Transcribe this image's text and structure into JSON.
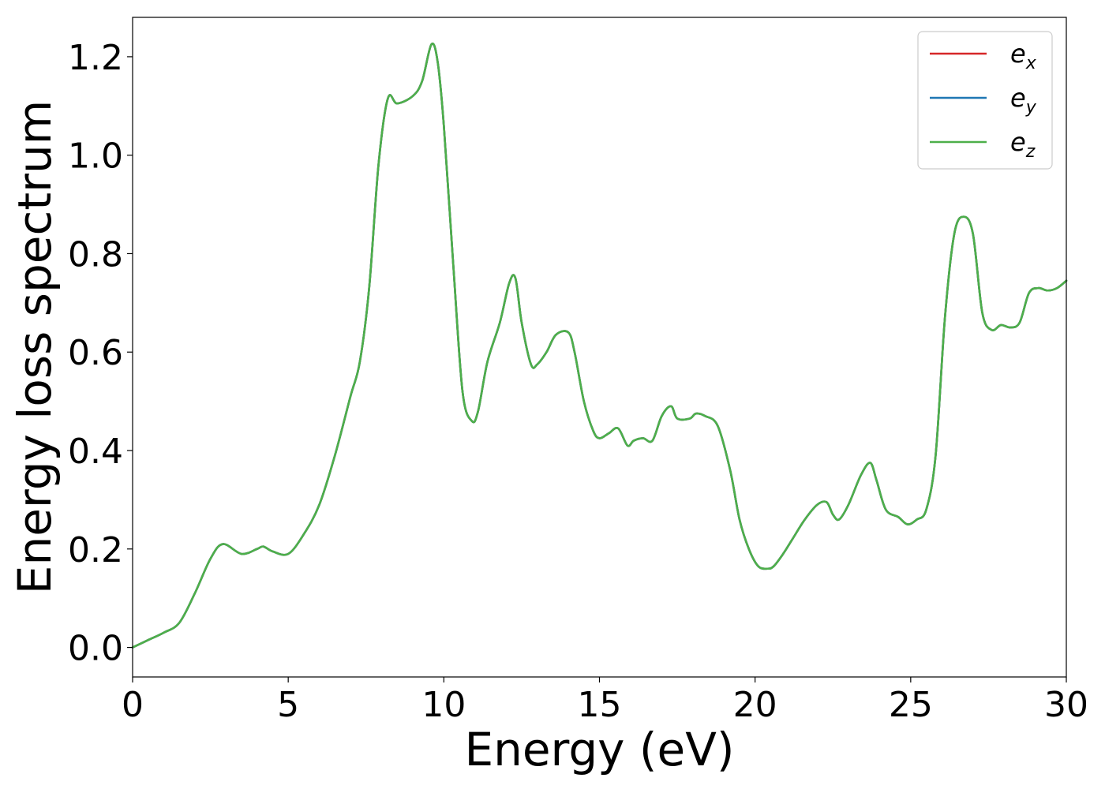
{
  "chart_data": {
    "type": "line",
    "xlabel": "Energy (eV)",
    "ylabel": "Energy loss spectrum",
    "xlim": [
      0,
      30
    ],
    "ylim": [
      -0.06,
      1.28
    ],
    "xticks": [
      0,
      5,
      10,
      15,
      20,
      25,
      30
    ],
    "xtick_labels": [
      "0",
      "5",
      "10",
      "15",
      "20",
      "25",
      "30"
    ],
    "yticks": [
      0.0,
      0.2,
      0.4,
      0.6,
      0.8,
      1.0,
      1.2
    ],
    "ytick_labels": [
      "0.0",
      "0.2",
      "0.4",
      "0.6",
      "0.8",
      "1.0",
      "1.2"
    ],
    "grid": false,
    "legend_position": "top-right",
    "x": [
      0,
      0.5,
      1.0,
      1.5,
      2.0,
      2.5,
      2.9,
      3.5,
      4.0,
      4.2,
      4.5,
      5.0,
      5.5,
      6.0,
      6.5,
      7.0,
      7.3,
      7.6,
      7.9,
      8.2,
      8.5,
      9.0,
      9.3,
      9.6,
      9.8,
      10.0,
      10.3,
      10.6,
      10.9,
      11.1,
      11.4,
      11.8,
      12.1,
      12.3,
      12.5,
      12.8,
      13.0,
      13.3,
      13.6,
      14.0,
      14.2,
      14.5,
      14.8,
      15.0,
      15.3,
      15.6,
      15.9,
      16.1,
      16.4,
      16.7,
      17.0,
      17.3,
      17.5,
      17.9,
      18.1,
      18.4,
      18.8,
      19.2,
      19.5,
      19.8,
      20.1,
      20.4,
      20.6,
      20.9,
      21.2,
      21.6,
      22.0,
      22.3,
      22.5,
      22.7,
      23.0,
      23.4,
      23.7,
      23.9,
      24.2,
      24.6,
      24.9,
      25.2,
      25.5,
      25.8,
      26.1,
      26.4,
      26.7,
      27.0,
      27.3,
      27.6,
      27.9,
      28.2,
      28.5,
      28.8,
      29.1,
      29.4,
      29.7,
      30.0
    ],
    "series": [
      {
        "name": "e_x",
        "legend_label": "e",
        "legend_sub": "x",
        "color": "#d62728",
        "values": [
          0.0,
          0.015,
          0.03,
          0.05,
          0.11,
          0.18,
          0.21,
          0.19,
          0.2,
          0.205,
          0.195,
          0.19,
          0.23,
          0.29,
          0.39,
          0.51,
          0.58,
          0.73,
          0.98,
          1.115,
          1.105,
          1.12,
          1.15,
          1.225,
          1.19,
          1.06,
          0.78,
          0.52,
          0.46,
          0.48,
          0.58,
          0.66,
          0.74,
          0.75,
          0.66,
          0.575,
          0.575,
          0.6,
          0.635,
          0.64,
          0.6,
          0.5,
          0.44,
          0.425,
          0.435,
          0.445,
          0.41,
          0.42,
          0.425,
          0.42,
          0.47,
          0.49,
          0.465,
          0.465,
          0.475,
          0.47,
          0.45,
          0.36,
          0.26,
          0.2,
          0.165,
          0.16,
          0.165,
          0.19,
          0.22,
          0.26,
          0.29,
          0.295,
          0.27,
          0.26,
          0.29,
          0.35,
          0.375,
          0.34,
          0.28,
          0.265,
          0.25,
          0.26,
          0.28,
          0.39,
          0.67,
          0.84,
          0.875,
          0.84,
          0.68,
          0.645,
          0.655,
          0.65,
          0.66,
          0.72,
          0.73,
          0.725,
          0.73,
          0.745
        ]
      },
      {
        "name": "e_y",
        "legend_label": "e",
        "legend_sub": "y",
        "color": "#1f77b4",
        "values": [
          0.0,
          0.015,
          0.03,
          0.05,
          0.11,
          0.18,
          0.21,
          0.19,
          0.2,
          0.205,
          0.195,
          0.19,
          0.23,
          0.29,
          0.39,
          0.51,
          0.58,
          0.73,
          0.98,
          1.115,
          1.105,
          1.12,
          1.15,
          1.225,
          1.19,
          1.06,
          0.78,
          0.52,
          0.46,
          0.48,
          0.58,
          0.66,
          0.74,
          0.75,
          0.66,
          0.575,
          0.575,
          0.6,
          0.635,
          0.64,
          0.6,
          0.5,
          0.44,
          0.425,
          0.435,
          0.445,
          0.41,
          0.42,
          0.425,
          0.42,
          0.47,
          0.49,
          0.465,
          0.465,
          0.475,
          0.47,
          0.45,
          0.36,
          0.26,
          0.2,
          0.165,
          0.16,
          0.165,
          0.19,
          0.22,
          0.26,
          0.29,
          0.295,
          0.27,
          0.26,
          0.29,
          0.35,
          0.375,
          0.34,
          0.28,
          0.265,
          0.25,
          0.26,
          0.28,
          0.39,
          0.67,
          0.84,
          0.875,
          0.84,
          0.68,
          0.645,
          0.655,
          0.65,
          0.66,
          0.72,
          0.73,
          0.725,
          0.73,
          0.745
        ]
      },
      {
        "name": "e_z",
        "legend_label": "e",
        "legend_sub": "z",
        "color": "#4daf4a",
        "values": [
          0.0,
          0.015,
          0.03,
          0.05,
          0.11,
          0.18,
          0.21,
          0.19,
          0.2,
          0.205,
          0.195,
          0.19,
          0.23,
          0.29,
          0.39,
          0.51,
          0.58,
          0.73,
          0.98,
          1.115,
          1.105,
          1.12,
          1.15,
          1.225,
          1.19,
          1.06,
          0.78,
          0.52,
          0.46,
          0.48,
          0.58,
          0.66,
          0.74,
          0.75,
          0.66,
          0.575,
          0.575,
          0.6,
          0.635,
          0.64,
          0.6,
          0.5,
          0.44,
          0.425,
          0.435,
          0.445,
          0.41,
          0.42,
          0.425,
          0.42,
          0.47,
          0.49,
          0.465,
          0.465,
          0.475,
          0.47,
          0.45,
          0.36,
          0.26,
          0.2,
          0.165,
          0.16,
          0.165,
          0.19,
          0.22,
          0.26,
          0.29,
          0.295,
          0.27,
          0.26,
          0.29,
          0.35,
          0.375,
          0.34,
          0.28,
          0.265,
          0.25,
          0.26,
          0.28,
          0.39,
          0.67,
          0.84,
          0.875,
          0.84,
          0.68,
          0.645,
          0.655,
          0.65,
          0.66,
          0.72,
          0.73,
          0.725,
          0.73,
          0.745
        ]
      }
    ]
  }
}
